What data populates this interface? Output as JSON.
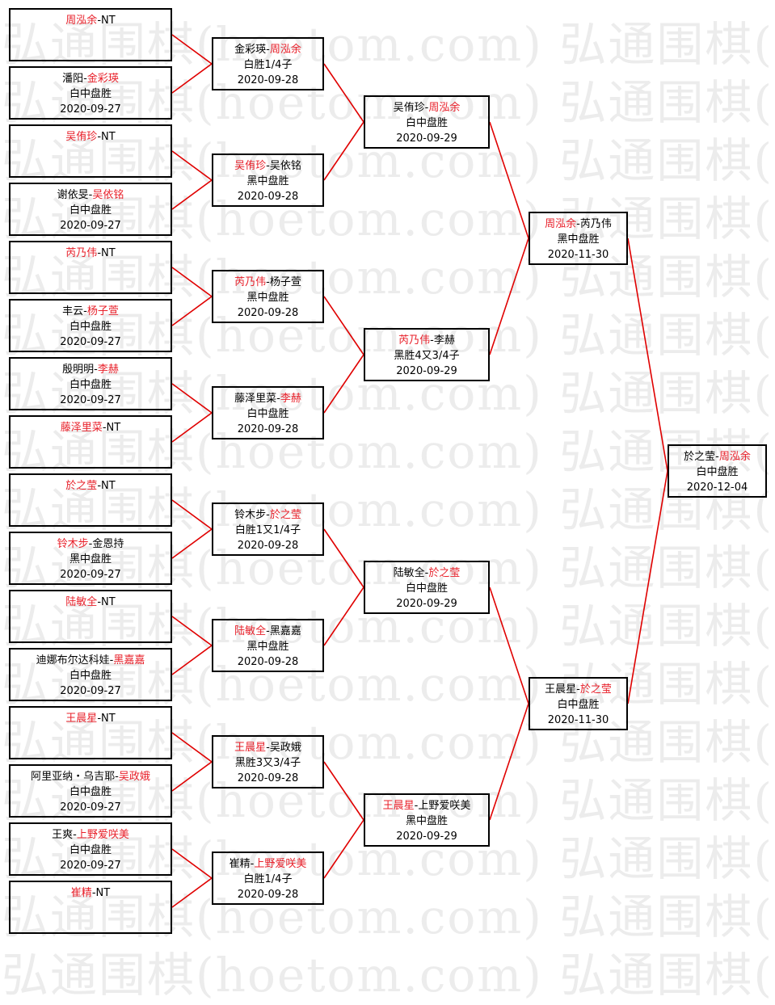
{
  "watermark": "弘通围棋(hoetom.com) 弘通围棋(hoetom.com)",
  "colors": {
    "winner": "#e8202a",
    "line": "#e00000",
    "text": "#000000"
  },
  "rounds": [
    [
      {
        "p1": "周泓余",
        "p2": "NT",
        "winner": 1,
        "result": "",
        "date": ""
      },
      {
        "p1": "潘阳",
        "p2": "金彩瑛",
        "winner": 2,
        "result": "白中盘胜",
        "date": "2020-09-27"
      },
      {
        "p1": "吴侑珍",
        "p2": "NT",
        "winner": 1,
        "result": "",
        "date": ""
      },
      {
        "p1": "谢依旻",
        "p2": "吴依铭",
        "winner": 2,
        "result": "白中盘胜",
        "date": "2020-09-27"
      },
      {
        "p1": "芮乃伟",
        "p2": "NT",
        "winner": 1,
        "result": "",
        "date": ""
      },
      {
        "p1": "丰云",
        "p2": "杨子萱",
        "winner": 2,
        "result": "白中盘胜",
        "date": "2020-09-27"
      },
      {
        "p1": "殷明明",
        "p2": "李赫",
        "winner": 2,
        "result": "白中盘胜",
        "date": "2020-09-27"
      },
      {
        "p1": "藤泽里菜",
        "p2": "NT",
        "winner": 1,
        "result": "",
        "date": ""
      },
      {
        "p1": "於之莹",
        "p2": "NT",
        "winner": 1,
        "result": "",
        "date": ""
      },
      {
        "p1": "铃木步",
        "p2": "金恩持",
        "winner": 1,
        "result": "黑中盘胜",
        "date": "2020-09-27"
      },
      {
        "p1": "陆敏全",
        "p2": "NT",
        "winner": 1,
        "result": "",
        "date": ""
      },
      {
        "p1": "迪娜布尔达科娃",
        "p2": "黑嘉嘉",
        "winner": 2,
        "result": "白中盘胜",
        "date": "2020-09-27"
      },
      {
        "p1": "王晨星",
        "p2": "NT",
        "winner": 1,
        "result": "",
        "date": ""
      },
      {
        "p1": "阿里亚纳・乌吉耶",
        "p2": "吴政娥",
        "winner": 2,
        "result": "白中盘胜",
        "date": "2020-09-27"
      },
      {
        "p1": "王爽",
        "p2": "上野爱咲美",
        "winner": 2,
        "result": "白中盘胜",
        "date": "2020-09-27"
      },
      {
        "p1": "崔精",
        "p2": "NT",
        "winner": 1,
        "result": "",
        "date": ""
      }
    ],
    [
      {
        "p1": "金彩瑛",
        "p2": "周泓余",
        "winner": 2,
        "result": "白胜1/4子",
        "date": "2020-09-28"
      },
      {
        "p1": "吴侑珍",
        "p2": "吴依铭",
        "winner": 1,
        "result": "黑中盘胜",
        "date": "2020-09-28"
      },
      {
        "p1": "芮乃伟",
        "p2": "杨子萱",
        "winner": 1,
        "result": "黑中盘胜",
        "date": "2020-09-28"
      },
      {
        "p1": "藤泽里菜",
        "p2": "李赫",
        "winner": 2,
        "result": "白中盘胜",
        "date": "2020-09-28"
      },
      {
        "p1": "铃木步",
        "p2": "於之莹",
        "winner": 2,
        "result": "白胜1又1/4子",
        "date": "2020-09-28"
      },
      {
        "p1": "陆敏全",
        "p2": "黑嘉嘉",
        "winner": 1,
        "result": "黑中盘胜",
        "date": "2020-09-28"
      },
      {
        "p1": "王晨星",
        "p2": "吴政娥",
        "winner": 1,
        "result": "黑胜3又3/4子",
        "date": "2020-09-28"
      },
      {
        "p1": "崔精",
        "p2": "上野爱咲美",
        "winner": 2,
        "result": "白胜1/4子",
        "date": "2020-09-28"
      }
    ],
    [
      {
        "p1": "吴侑珍",
        "p2": "周泓余",
        "winner": 2,
        "result": "白中盘胜",
        "date": "2020-09-29"
      },
      {
        "p1": "芮乃伟",
        "p2": "李赫",
        "winner": 1,
        "result": "黑胜4又3/4子",
        "date": "2020-09-29"
      },
      {
        "p1": "陆敏全",
        "p2": "於之莹",
        "winner": 2,
        "result": "白中盘胜",
        "date": "2020-09-29"
      },
      {
        "p1": "王晨星",
        "p2": "上野爱咲美",
        "winner": 1,
        "result": "黑中盘胜",
        "date": "2020-09-29"
      }
    ],
    [
      {
        "p1": "周泓余",
        "p2": "芮乃伟",
        "winner": 1,
        "result": "黑中盘胜",
        "date": "2020-11-30"
      },
      {
        "p1": "王晨星",
        "p2": "於之莹",
        "winner": 2,
        "result": "白中盘胜",
        "date": "2020-11-30"
      }
    ],
    [
      {
        "p1": "於之莹",
        "p2": "周泓余",
        "winner": 2,
        "result": "白中盘胜",
        "date": "2020-12-04"
      }
    ]
  ]
}
